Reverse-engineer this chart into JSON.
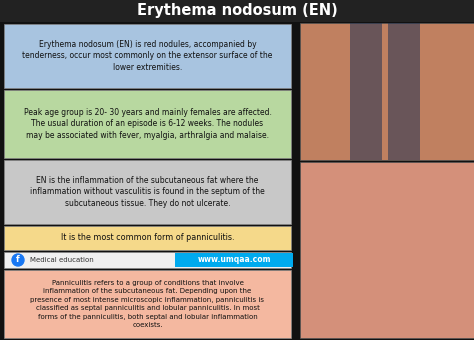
{
  "title": "Erythema nodosum (EN)",
  "title_bg": "#222222",
  "title_color": "#ffffff",
  "box1_text": "Erythema nodosum (EN) is red nodules, accompanied by\ntenderness, occur most commonly on the extensor surface of the\nlower extremities.",
  "box1_color": "#a8c4e0",
  "box2_text": "Peak age group is 20- 30 years and mainly females are affected.\nThe usual duration of an episode is 6-12 weeks. The nodules\nmay be associated with fever, myalgia, arthralgia and malaise.",
  "box2_color": "#b8d8a0",
  "box3_text": "EN is the inflammation of the subcutaneous fat where the\ninflammation without vasculitis is found in the septum of the\nsubcutaneous tissue. They do not ulcerate.",
  "box3_color": "#c8c8c8",
  "box4_text": "It is the most common form of panniculitis.",
  "box4_color": "#f5d98a",
  "footer_text": "Medical education",
  "footer_bg": "#f0f0f0",
  "url_text": "www.umqaa.com",
  "url_bg": "#00aaee",
  "url_color": "#ffffff",
  "bottom_text": "Panniculitis refers to a group of conditions that involve\ninflammation of the subcutaneous fat. Depending upon the\npresence of most intense microscopic inflammation, panniculitis is\nclassified as septal panniculitis and lobular panniculitis. In most\nforms of the panniculitis, both septal and lobular inflammation\ncoexists.",
  "bottom_bg": "#f4b8a0",
  "fb_icon_color": "#1877f2",
  "top_img_color": "#c08060",
  "bot_img_color": "#d4907a",
  "dark_strip_color": "#223355"
}
